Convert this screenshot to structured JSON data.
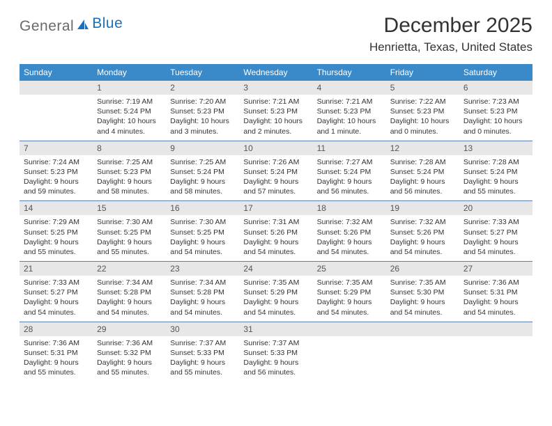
{
  "logo": {
    "text_general": "General",
    "text_blue": "Blue"
  },
  "title": "December 2025",
  "location": "Henrietta, Texas, United States",
  "colors": {
    "header_bg": "#3a8aca",
    "header_text": "#ffffff",
    "daynum_bg": "#e7e7e7",
    "row_divider": "#5b7faa",
    "logo_gray": "#6a6a6a",
    "logo_blue": "#1d6fb8",
    "text": "#333333",
    "background": "#ffffff"
  },
  "typography": {
    "title_fontsize": 30,
    "location_fontsize": 17,
    "header_fontsize": 12,
    "daynum_fontsize": 12,
    "body_fontsize": 10.5,
    "logo_fontsize": 21
  },
  "day_headers": [
    "Sunday",
    "Monday",
    "Tuesday",
    "Wednesday",
    "Thursday",
    "Friday",
    "Saturday"
  ],
  "weeks": [
    [
      {
        "num": "",
        "sunrise": "",
        "sunset": "",
        "daylight": ""
      },
      {
        "num": "1",
        "sunrise": "Sunrise: 7:19 AM",
        "sunset": "Sunset: 5:24 PM",
        "daylight": "Daylight: 10 hours and 4 minutes."
      },
      {
        "num": "2",
        "sunrise": "Sunrise: 7:20 AM",
        "sunset": "Sunset: 5:23 PM",
        "daylight": "Daylight: 10 hours and 3 minutes."
      },
      {
        "num": "3",
        "sunrise": "Sunrise: 7:21 AM",
        "sunset": "Sunset: 5:23 PM",
        "daylight": "Daylight: 10 hours and 2 minutes."
      },
      {
        "num": "4",
        "sunrise": "Sunrise: 7:21 AM",
        "sunset": "Sunset: 5:23 PM",
        "daylight": "Daylight: 10 hours and 1 minute."
      },
      {
        "num": "5",
        "sunrise": "Sunrise: 7:22 AM",
        "sunset": "Sunset: 5:23 PM",
        "daylight": "Daylight: 10 hours and 0 minutes."
      },
      {
        "num": "6",
        "sunrise": "Sunrise: 7:23 AM",
        "sunset": "Sunset: 5:23 PM",
        "daylight": "Daylight: 10 hours and 0 minutes."
      }
    ],
    [
      {
        "num": "7",
        "sunrise": "Sunrise: 7:24 AM",
        "sunset": "Sunset: 5:23 PM",
        "daylight": "Daylight: 9 hours and 59 minutes."
      },
      {
        "num": "8",
        "sunrise": "Sunrise: 7:25 AM",
        "sunset": "Sunset: 5:23 PM",
        "daylight": "Daylight: 9 hours and 58 minutes."
      },
      {
        "num": "9",
        "sunrise": "Sunrise: 7:25 AM",
        "sunset": "Sunset: 5:24 PM",
        "daylight": "Daylight: 9 hours and 58 minutes."
      },
      {
        "num": "10",
        "sunrise": "Sunrise: 7:26 AM",
        "sunset": "Sunset: 5:24 PM",
        "daylight": "Daylight: 9 hours and 57 minutes."
      },
      {
        "num": "11",
        "sunrise": "Sunrise: 7:27 AM",
        "sunset": "Sunset: 5:24 PM",
        "daylight": "Daylight: 9 hours and 56 minutes."
      },
      {
        "num": "12",
        "sunrise": "Sunrise: 7:28 AM",
        "sunset": "Sunset: 5:24 PM",
        "daylight": "Daylight: 9 hours and 56 minutes."
      },
      {
        "num": "13",
        "sunrise": "Sunrise: 7:28 AM",
        "sunset": "Sunset: 5:24 PM",
        "daylight": "Daylight: 9 hours and 55 minutes."
      }
    ],
    [
      {
        "num": "14",
        "sunrise": "Sunrise: 7:29 AM",
        "sunset": "Sunset: 5:25 PM",
        "daylight": "Daylight: 9 hours and 55 minutes."
      },
      {
        "num": "15",
        "sunrise": "Sunrise: 7:30 AM",
        "sunset": "Sunset: 5:25 PM",
        "daylight": "Daylight: 9 hours and 55 minutes."
      },
      {
        "num": "16",
        "sunrise": "Sunrise: 7:30 AM",
        "sunset": "Sunset: 5:25 PM",
        "daylight": "Daylight: 9 hours and 54 minutes."
      },
      {
        "num": "17",
        "sunrise": "Sunrise: 7:31 AM",
        "sunset": "Sunset: 5:26 PM",
        "daylight": "Daylight: 9 hours and 54 minutes."
      },
      {
        "num": "18",
        "sunrise": "Sunrise: 7:32 AM",
        "sunset": "Sunset: 5:26 PM",
        "daylight": "Daylight: 9 hours and 54 minutes."
      },
      {
        "num": "19",
        "sunrise": "Sunrise: 7:32 AM",
        "sunset": "Sunset: 5:26 PM",
        "daylight": "Daylight: 9 hours and 54 minutes."
      },
      {
        "num": "20",
        "sunrise": "Sunrise: 7:33 AM",
        "sunset": "Sunset: 5:27 PM",
        "daylight": "Daylight: 9 hours and 54 minutes."
      }
    ],
    [
      {
        "num": "21",
        "sunrise": "Sunrise: 7:33 AM",
        "sunset": "Sunset: 5:27 PM",
        "daylight": "Daylight: 9 hours and 54 minutes."
      },
      {
        "num": "22",
        "sunrise": "Sunrise: 7:34 AM",
        "sunset": "Sunset: 5:28 PM",
        "daylight": "Daylight: 9 hours and 54 minutes."
      },
      {
        "num": "23",
        "sunrise": "Sunrise: 7:34 AM",
        "sunset": "Sunset: 5:28 PM",
        "daylight": "Daylight: 9 hours and 54 minutes."
      },
      {
        "num": "24",
        "sunrise": "Sunrise: 7:35 AM",
        "sunset": "Sunset: 5:29 PM",
        "daylight": "Daylight: 9 hours and 54 minutes."
      },
      {
        "num": "25",
        "sunrise": "Sunrise: 7:35 AM",
        "sunset": "Sunset: 5:29 PM",
        "daylight": "Daylight: 9 hours and 54 minutes."
      },
      {
        "num": "26",
        "sunrise": "Sunrise: 7:35 AM",
        "sunset": "Sunset: 5:30 PM",
        "daylight": "Daylight: 9 hours and 54 minutes."
      },
      {
        "num": "27",
        "sunrise": "Sunrise: 7:36 AM",
        "sunset": "Sunset: 5:31 PM",
        "daylight": "Daylight: 9 hours and 54 minutes."
      }
    ],
    [
      {
        "num": "28",
        "sunrise": "Sunrise: 7:36 AM",
        "sunset": "Sunset: 5:31 PM",
        "daylight": "Daylight: 9 hours and 55 minutes."
      },
      {
        "num": "29",
        "sunrise": "Sunrise: 7:36 AM",
        "sunset": "Sunset: 5:32 PM",
        "daylight": "Daylight: 9 hours and 55 minutes."
      },
      {
        "num": "30",
        "sunrise": "Sunrise: 7:37 AM",
        "sunset": "Sunset: 5:33 PM",
        "daylight": "Daylight: 9 hours and 55 minutes."
      },
      {
        "num": "31",
        "sunrise": "Sunrise: 7:37 AM",
        "sunset": "Sunset: 5:33 PM",
        "daylight": "Daylight: 9 hours and 56 minutes."
      },
      {
        "num": "",
        "sunrise": "",
        "sunset": "",
        "daylight": ""
      },
      {
        "num": "",
        "sunrise": "",
        "sunset": "",
        "daylight": ""
      },
      {
        "num": "",
        "sunrise": "",
        "sunset": "",
        "daylight": ""
      }
    ]
  ]
}
